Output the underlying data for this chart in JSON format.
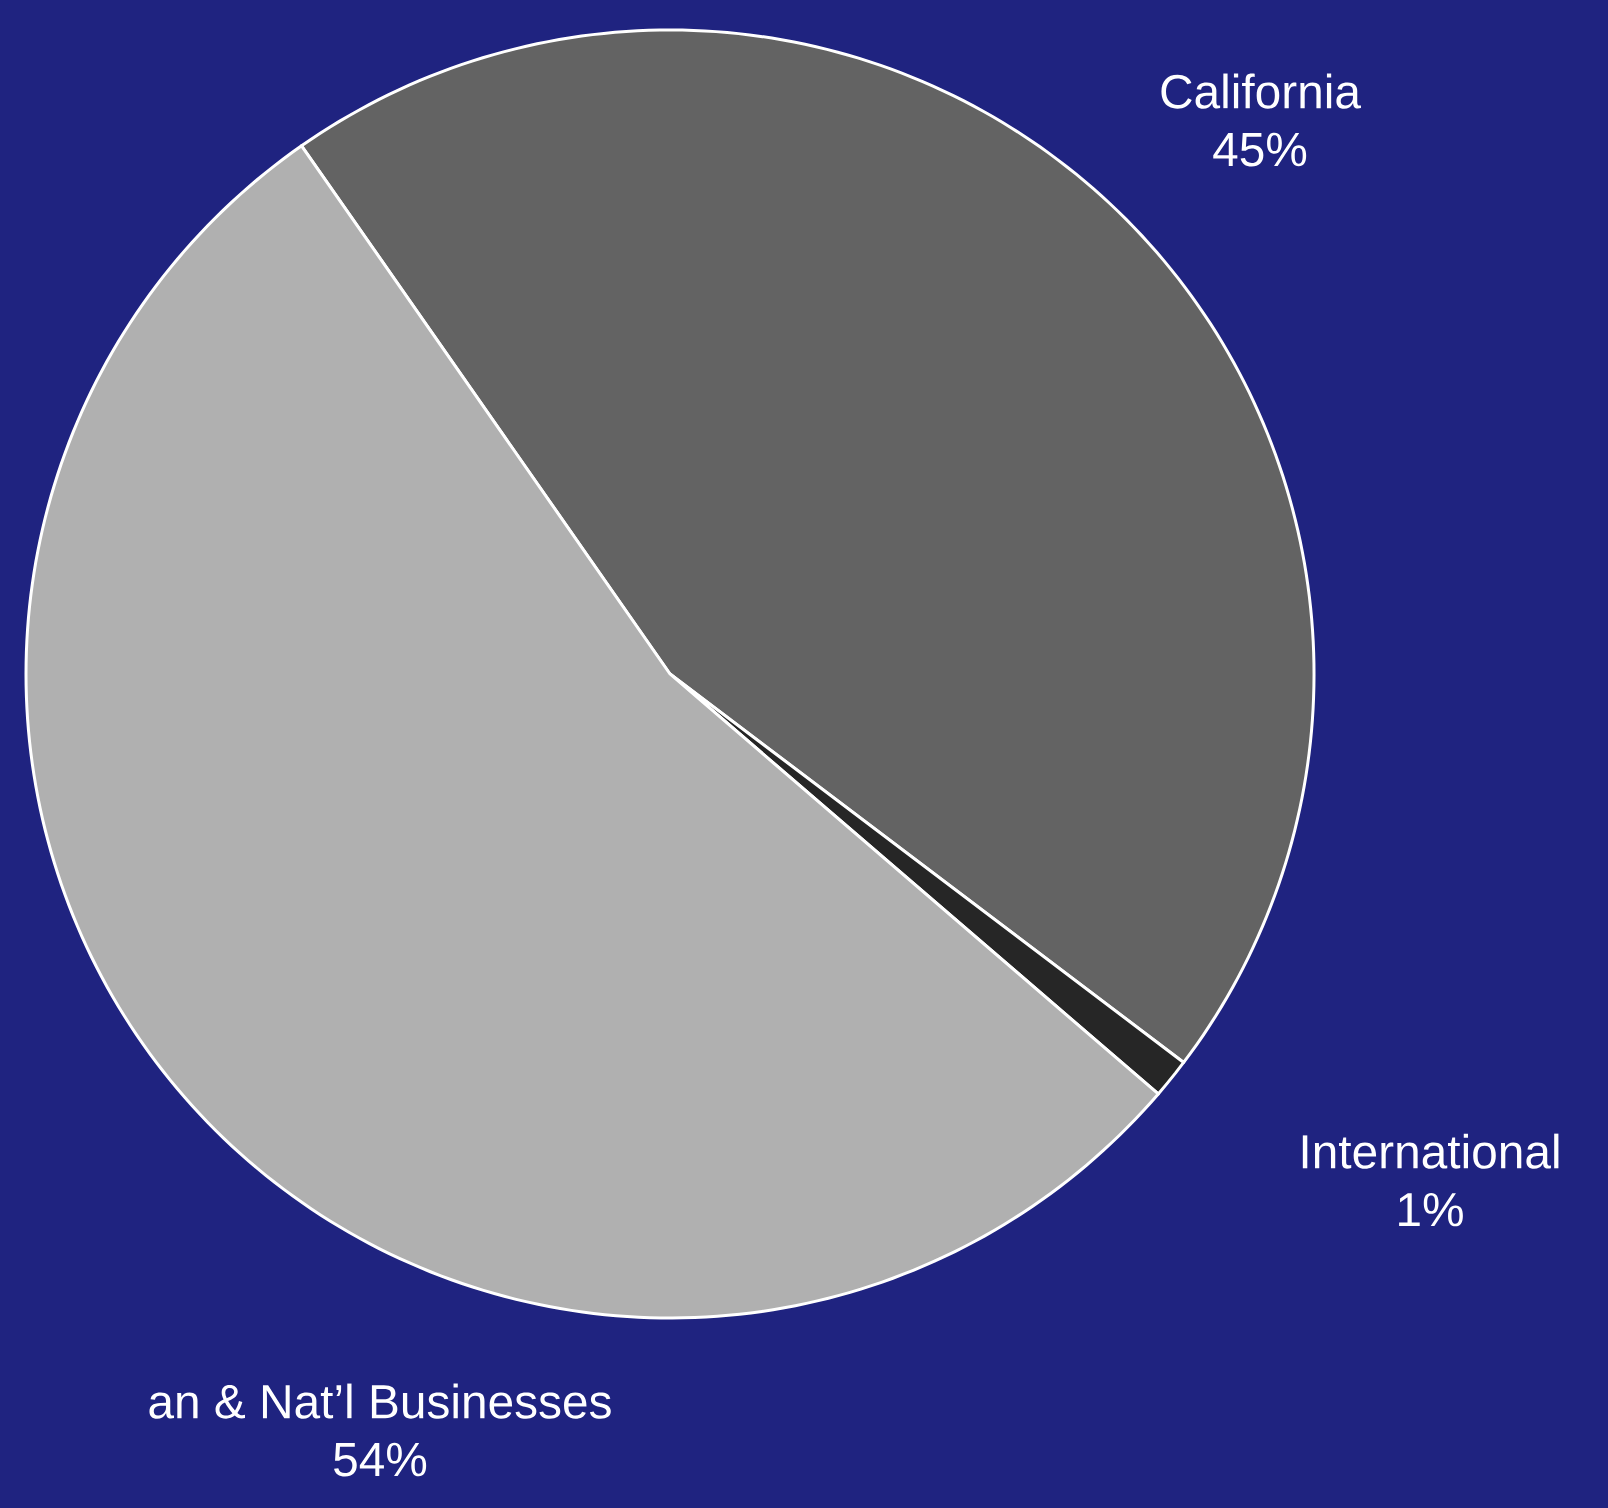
{
  "chart_data": {
    "type": "pie",
    "categories": [
      "California",
      "International",
      "an & Nat’l Businesses"
    ],
    "values": [
      45,
      1,
      54
    ],
    "value_labels": [
      "45%",
      "1%",
      "54%"
    ],
    "colors": [
      "#636363",
      "#262626",
      "#b0b0b0"
    ]
  }
}
